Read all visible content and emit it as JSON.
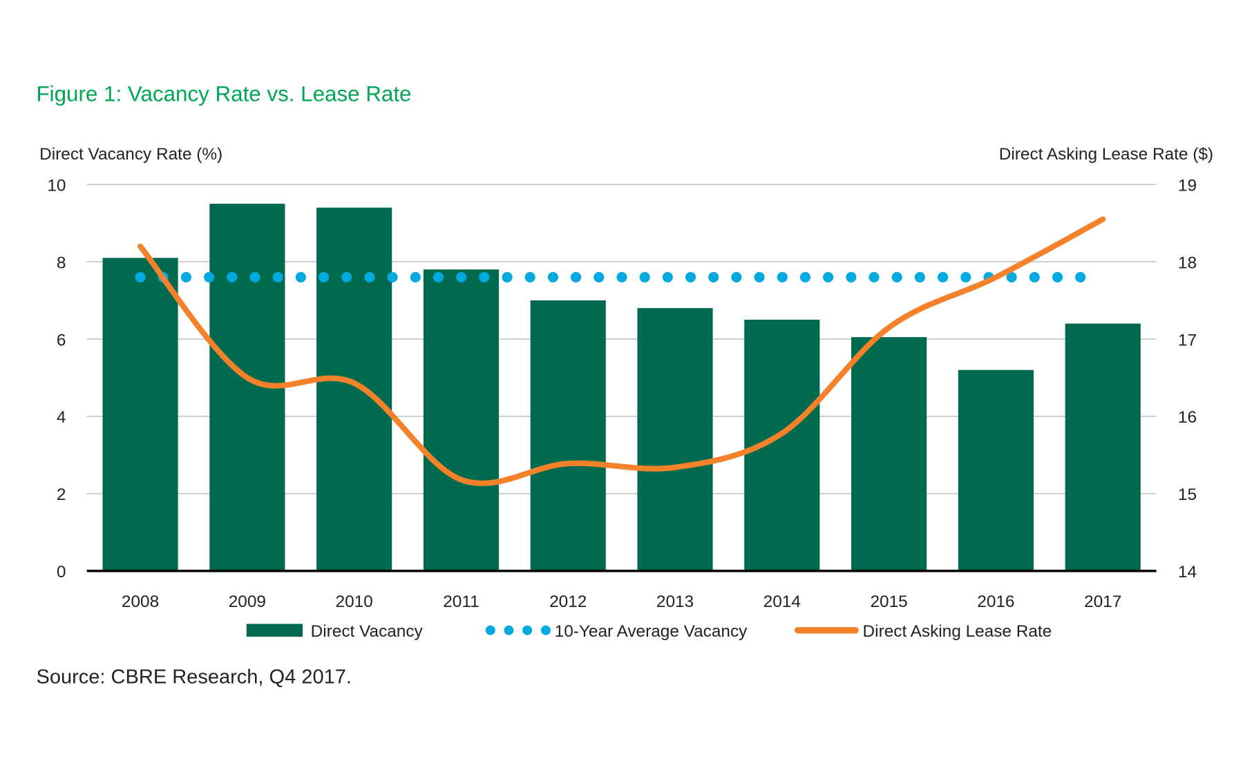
{
  "title": "Figure 1: Vacancy Rate vs. Lease Rate",
  "source": "Source: CBRE Research, Q4 2017.",
  "colors": {
    "title": "#00a651",
    "bars": "#006a4e",
    "average": "#00a9e0",
    "line": "#f5822a",
    "grid": "#c8c8c8"
  },
  "chart_data": {
    "type": "bar+line",
    "categories": [
      "2008",
      "2009",
      "2010",
      "2011",
      "2012",
      "2013",
      "2014",
      "2015",
      "2016",
      "2017"
    ],
    "ylabel_left": "Direct Vacancy Rate (%)",
    "ylabel_right": "Direct Asking Lease Rate ($)",
    "ylim_left": [
      0,
      10
    ],
    "yticks_left": [
      "0",
      "2",
      "4",
      "6",
      "8",
      "10"
    ],
    "ylim_right": [
      14,
      19
    ],
    "yticks_right": [
      "14",
      "15",
      "16",
      "17",
      "18",
      "19"
    ],
    "grid": true,
    "legend_position": "bottom",
    "series": [
      {
        "name": "Direct Vacancy",
        "type": "bar",
        "axis": "left",
        "values": [
          8.1,
          9.5,
          9.4,
          7.8,
          7.0,
          6.8,
          6.5,
          6.05,
          5.2,
          6.4
        ]
      },
      {
        "name": "10-Year Average Vacancy",
        "type": "dotted-line",
        "axis": "left",
        "values": [
          7.6,
          7.6,
          7.6,
          7.6,
          7.6,
          7.6,
          7.6,
          7.6,
          7.6,
          7.6
        ]
      },
      {
        "name": "Direct Asking Lease Rate",
        "type": "line",
        "axis": "right",
        "values": [
          18.2,
          16.5,
          16.43,
          15.18,
          15.39,
          15.34,
          15.78,
          17.15,
          17.8,
          18.55
        ]
      }
    ]
  }
}
